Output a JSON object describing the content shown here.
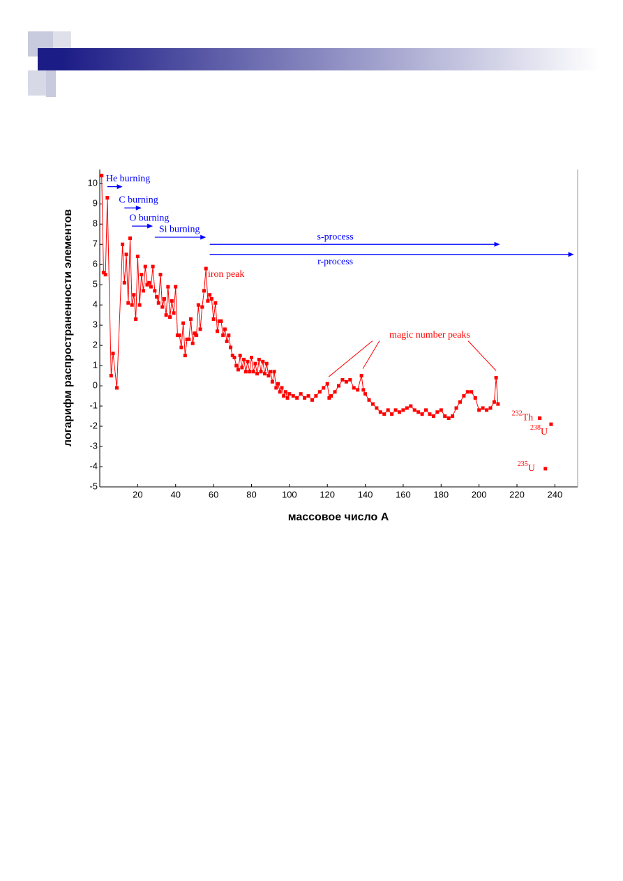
{
  "chart_data": {
    "type": "line",
    "y_label": "логарифм распространенности элементов",
    "x_label": "массовое число А",
    "color": "#ff0000",
    "xlim": [
      0,
      252
    ],
    "ylim": [
      -5,
      10.7
    ],
    "xticks": [
      20,
      40,
      60,
      80,
      100,
      120,
      140,
      160,
      180,
      200,
      220,
      240
    ],
    "yticks": [
      -5,
      -4,
      -3,
      -2,
      -1,
      0,
      1,
      2,
      3,
      4,
      5,
      6,
      7,
      8,
      9,
      10
    ],
    "x": [
      1,
      2,
      3,
      4,
      6,
      7,
      9,
      12,
      13,
      14,
      15,
      16,
      17,
      18,
      19,
      20,
      21,
      22,
      23,
      24,
      25,
      26,
      27,
      28,
      29,
      30,
      31,
      32,
      33,
      34,
      35,
      36,
      37,
      38,
      39,
      40,
      41,
      42,
      43,
      44,
      45,
      46,
      47,
      48,
      49,
      50,
      51,
      52,
      53,
      54,
      55,
      56,
      57,
      58,
      59,
      60,
      61,
      62,
      63,
      64,
      65,
      66,
      67,
      68,
      69,
      70,
      71,
      72,
      73,
      74,
      75,
      76,
      77,
      78,
      79,
      80,
      81,
      82,
      83,
      84,
      85,
      86,
      87,
      88,
      89,
      90,
      91,
      92,
      93,
      94,
      95,
      96,
      97,
      98,
      99,
      100,
      102,
      104,
      106,
      108,
      110,
      112,
      114,
      116,
      118,
      120,
      121,
      122,
      124,
      126,
      128,
      130,
      132,
      134,
      136,
      138,
      139,
      140,
      142,
      144,
      146,
      148,
      150,
      152,
      154,
      156,
      158,
      160,
      162,
      164,
      166,
      168,
      170,
      172,
      174,
      176,
      178,
      180,
      182,
      184,
      186,
      188,
      190,
      192,
      194,
      196,
      198,
      200,
      202,
      204,
      206,
      208,
      209,
      210
    ],
    "values": [
      10.4,
      5.6,
      5.5,
      9.3,
      0.5,
      1.6,
      -0.1,
      7.0,
      5.1,
      6.5,
      4.1,
      7.3,
      4.0,
      4.5,
      3.3,
      6.4,
      4.0,
      5.5,
      4.7,
      5.9,
      5.0,
      5.1,
      4.9,
      5.9,
      4.7,
      4.4,
      4.1,
      5.5,
      3.9,
      4.3,
      3.5,
      4.9,
      3.4,
      4.2,
      3.6,
      4.9,
      2.5,
      2.5,
      1.9,
      3.1,
      1.5,
      2.3,
      2.3,
      3.3,
      2.1,
      2.6,
      2.5,
      4.0,
      2.8,
      3.9,
      4.7,
      5.8,
      4.2,
      4.5,
      4.3,
      3.3,
      4.1,
      2.7,
      3.2,
      3.2,
      2.5,
      2.8,
      2.2,
      2.5,
      1.9,
      1.5,
      1.4,
      1.0,
      0.8,
      1.5,
      0.9,
      1.3,
      0.7,
      1.2,
      0.7,
      1.4,
      0.7,
      1.1,
      0.6,
      1.3,
      0.7,
      1.2,
      0.6,
      1.1,
      0.5,
      0.7,
      0.2,
      0.7,
      -0.1,
      0.1,
      -0.3,
      -0.1,
      -0.5,
      -0.3,
      -0.6,
      -0.4,
      -0.5,
      -0.6,
      -0.4,
      -0.6,
      -0.5,
      -0.7,
      -0.5,
      -0.3,
      -0.1,
      0.1,
      -0.6,
      -0.5,
      -0.3,
      0.0,
      0.3,
      0.2,
      0.3,
      -0.1,
      -0.2,
      0.5,
      -0.2,
      -0.4,
      -0.7,
      -0.9,
      -1.1,
      -1.3,
      -1.4,
      -1.2,
      -1.4,
      -1.2,
      -1.3,
      -1.2,
      -1.1,
      -1.0,
      -1.2,
      -1.3,
      -1.4,
      -1.2,
      -1.4,
      -1.5,
      -1.3,
      -1.2,
      -1.5,
      -1.6,
      -1.5,
      -1.1,
      -0.8,
      -0.5,
      -0.3,
      -0.3,
      -0.6,
      -1.2,
      -1.1,
      -1.2,
      -1.1,
      -0.8,
      0.4,
      -0.9
    ],
    "isotopes": [
      {
        "mass": "232",
        "symbol": "Th",
        "x": 232,
        "y": -1.6
      },
      {
        "mass": "238",
        "symbol": "U",
        "x": 238,
        "y": -1.9
      },
      {
        "mass": "235",
        "symbol": "U",
        "x": 235,
        "y": -4.1
      }
    ],
    "processes": [
      {
        "text": "He burning",
        "from": 4,
        "to": 12,
        "y": 9.85
      },
      {
        "text": "C burning",
        "from": 13,
        "to": 22,
        "y": 8.8
      },
      {
        "text": "O burning",
        "from": 17,
        "to": 28,
        "y": 7.9
      },
      {
        "text": "Si burning",
        "from": 29,
        "to": 56,
        "y": 7.35
      },
      {
        "text": "s-process",
        "from": 58,
        "to": 211,
        "y": 7.0
      },
      {
        "text": "r-process",
        "from": 58,
        "to": 250,
        "y": 6.5
      }
    ],
    "iron_peak": {
      "text": "iron peak",
      "x": 57,
      "y": 5.5
    },
    "magic_number_peaks": {
      "text": "magic number peaks",
      "x": 174,
      "y": 2.5,
      "peaks": [
        {
          "x": 120,
          "y": 0.1
        },
        {
          "x": 138,
          "y": 0.5
        },
        {
          "x": 209,
          "y": 0.4
        }
      ]
    }
  }
}
